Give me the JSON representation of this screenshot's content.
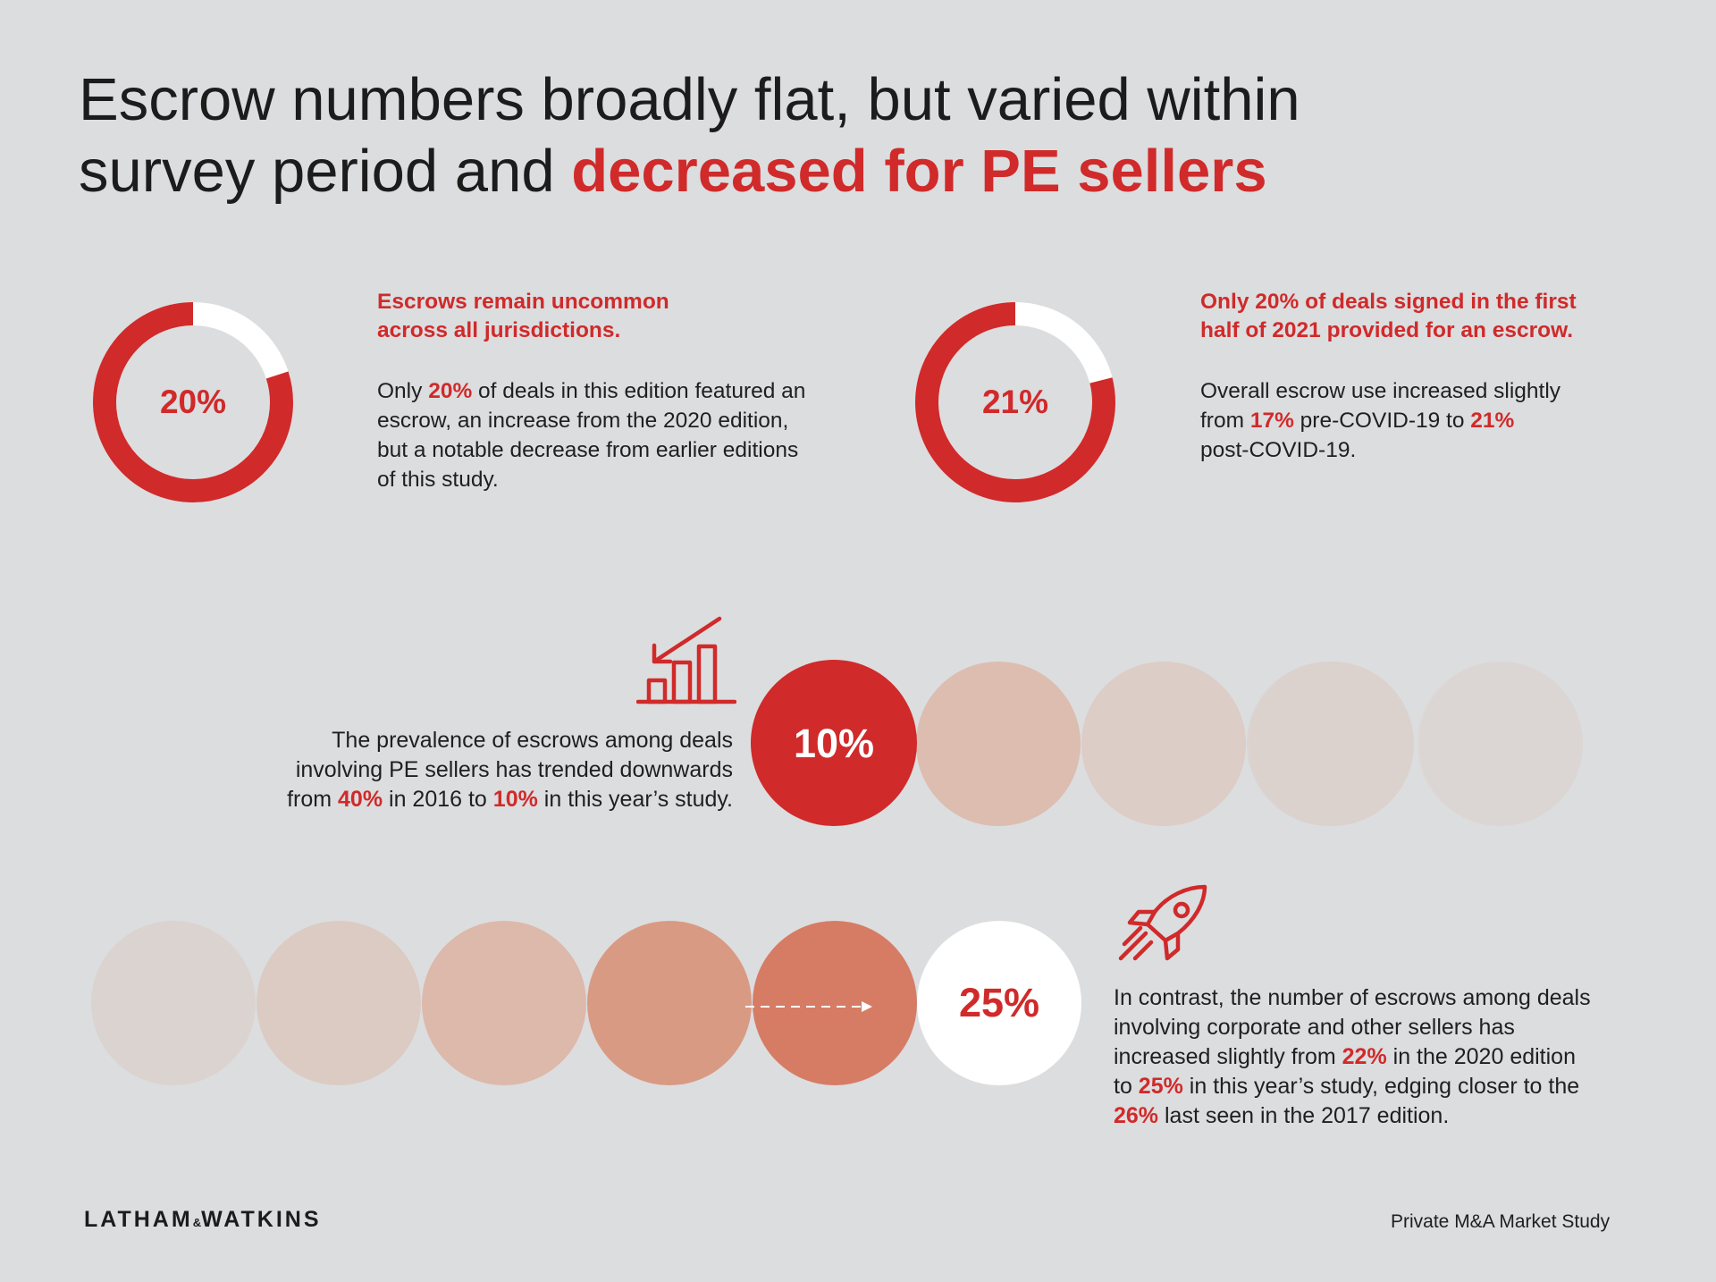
{
  "headline": {
    "line1": "Escrow numbers broadly flat, but varied within",
    "line2_plain": "survey period and ",
    "line2_highlight": "decreased for PE sellers"
  },
  "stat_left": {
    "percent_label": "20%",
    "percent_value": 20,
    "heading_line1": "Escrows remain uncommon",
    "heading_line2": "across all jurisdictions.",
    "body": {
      "pre": "Only ",
      "hl1": "20%",
      "l1_rest": " of deals in this edition featured an",
      "l2": "escrow, an increase from the 2020 edition,",
      "l3": "but a notable decrease from earlier editions",
      "l4": "of this study."
    }
  },
  "stat_right": {
    "percent_label": "21%",
    "percent_value": 21,
    "heading_line1": "Only 20% of deals signed in the first",
    "heading_line2": "half of 2021 provided for an escrow.",
    "body": {
      "l1": "Overall escrow use increased slightly",
      "l2_pre": "from ",
      "hl1": "17%",
      "l2_mid": " pre-COVID-19 to ",
      "hl2": "21%",
      "l3": "post-COVID-19."
    }
  },
  "pe_sellers": {
    "icon": "declining-bar-chart-icon",
    "circle_label": "10%",
    "circle_value": 10,
    "body": {
      "l1": "The prevalence of escrows among deals",
      "l2": "involving PE sellers has trended downwards",
      "l3_pre": "from ",
      "hl1": "40%",
      "l3_mid": " in 2016 to ",
      "hl2": "10%",
      "l3_post": " in this year’s study."
    }
  },
  "corporate_sellers": {
    "icon": "rocket-icon",
    "circle_label": "25%",
    "circle_value": 25,
    "body": {
      "l1": "In contrast, the number of escrows among deals",
      "l2": "involving corporate and other sellers has",
      "l3_pre": "increased slightly from ",
      "hl1": "22%",
      "l3_post": " in the 2020 edition",
      "l4_pre": "to ",
      "hl2": "25%",
      "l4_post": " in this year’s study, edging closer to the",
      "hl3": "26%",
      "l5_post": " last seen in the 2017 edition."
    }
  },
  "colors": {
    "accent": "#d02a2a",
    "background": "#dcdddf",
    "pe_faded_circles": [
      "#dcbdb0",
      "#dccdc6",
      "#dbd1cd",
      "#dbd3d0"
    ],
    "corp_gradient_circles": [
      "#dbd3d0",
      "#dccbc3",
      "#dcb9aa",
      "#d99a83",
      "#d67c64"
    ]
  },
  "footer": {
    "logo_left": "LATHAM",
    "logo_amp": "&",
    "logo_right": "WATKINS",
    "publication": "Private M&A Market Study"
  }
}
